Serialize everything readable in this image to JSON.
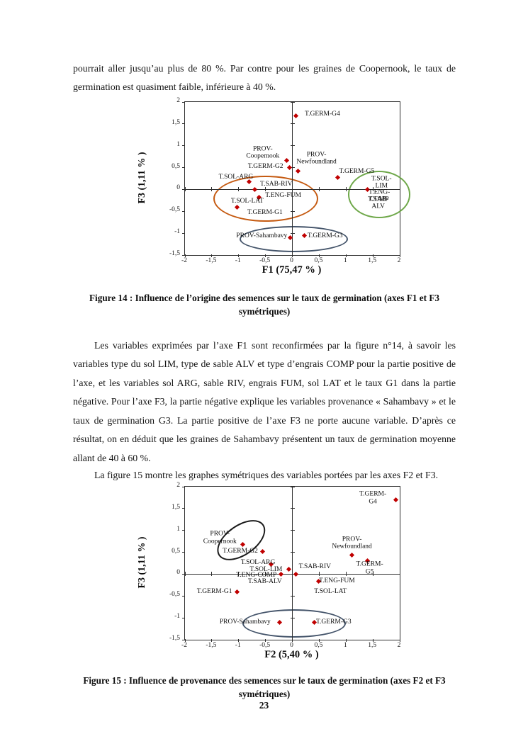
{
  "page": {
    "paragraph1": "pourrait aller jusqu’au plus de 80 %. Par contre pour les graines de Coopernook, le taux de germination est quasiment faible, inférieure à 40 %.",
    "paragraph2": "Les variables exprimées par l’axe F1 sont reconfirmées par la figure n°14, à savoir les variables type du sol LIM, type de sable ALV et type d’engrais COMP  pour la partie positive de l’axe, et les variables sol ARG, sable RIV, engrais FUM, sol LAT et le taux G1 dans la partie négative. Pour l’axe F3, la partie négative explique les variables provenance « Sahambavy » et le taux de germination G3. La partie positive de l’axe F3 ne porte aucune variable. D’après ce résultat, on en déduit que les graines de Sahambavy présentent un taux de germination moyenne allant de 40 à 60 %.",
    "paragraph3": "La figure 15 montre les graphes symétriques des variables portées par les axes F2 et F3.",
    "caption14": {
      "line1": "Figure 14 : Influence de l’origine des semences sur le taux de germination (axes F1 et F3",
      "line2": "symétriques)"
    },
    "caption15": {
      "line1": "Figure 15 : Influence de provenance des semences sur le taux de germination (axes F2 et F3",
      "line2": "symétriques)"
    },
    "page_number": "23"
  },
  "chart_data": [
    {
      "type": "scatter",
      "xlabel": "F1 (75,47 % )",
      "ylabel": "F3 (1,11 % )",
      "xlim": [
        -2,
        2
      ],
      "ylim": [
        -1.5,
        2
      ],
      "tick_step": 0.5,
      "x_ticks": [
        "-2",
        "-1,5",
        "-1",
        "-0,5",
        "0",
        "0,5",
        "1",
        "1,5",
        "2"
      ],
      "y_ticks": [
        "2",
        "1,5",
        "1",
        "0,5",
        "0",
        "-0,5",
        "-1",
        "-1,5"
      ],
      "point_color": "#c00000",
      "points": [
        {
          "label": "T.GERM-G4",
          "x": 0.07,
          "y": 1.68,
          "lx": 0.56,
          "ly": 1.72
        },
        {
          "label": "PROV-\nCoopernook",
          "x": -0.1,
          "y": 0.66,
          "lx": -0.55,
          "ly": 0.84
        },
        {
          "label": "T.GERM-G2",
          "x": -0.05,
          "y": 0.5,
          "lx": -0.5,
          "ly": 0.53
        },
        {
          "label": "PROV-\nNewfoundland",
          "x": 0.1,
          "y": 0.42,
          "lx": 0.45,
          "ly": 0.71
        },
        {
          "label": "T.GERM-G5",
          "x": 0.85,
          "y": 0.27,
          "lx": 1.2,
          "ly": 0.41
        },
        {
          "label": "T.SOL-ARG",
          "x": -0.8,
          "y": 0.17,
          "lx": -1.05,
          "ly": 0.29
        },
        {
          "label": "T.SAB-RIV",
          "x": -0.7,
          "y": 0.0,
          "lx": -0.3,
          "ly": 0.12
        },
        {
          "label": "T.ENG-FUM",
          "x": -0.62,
          "y": -0.18,
          "lx": -0.17,
          "ly": -0.14
        },
        {
          "label": "T.SOL-LAT",
          "x": -1.03,
          "y": -0.41,
          "lx": -0.84,
          "ly": -0.27
        },
        {
          "label": "T.GERM-G1",
          "x": null,
          "y": null,
          "lx": -0.51,
          "ly": -0.52
        },
        {
          "label": "T.SOL-LIM",
          "x": 1.4,
          "y": 0.0,
          "lx": 1.66,
          "ly": 0.16
        },
        {
          "label": "T.ENG-COMP",
          "x": null,
          "y": null,
          "lx": 1.62,
          "ly": -0.15
        },
        {
          "label": "T.SAB-ALV",
          "x": null,
          "y": null,
          "lx": 1.6,
          "ly": -0.31
        },
        {
          "label": "PROV-Sahambavy",
          "x": -0.04,
          "y": -1.1,
          "lx": -0.57,
          "ly": -1.07
        },
        {
          "label": "T.GERM-G3",
          "x": 0.22,
          "y": -1.05,
          "lx": 0.61,
          "ly": -1.06
        }
      ],
      "ellipses": [
        {
          "color": "#c55a11",
          "cx": -0.52,
          "cy": -0.18,
          "rx": 0.95,
          "ry": 0.5,
          "rot": 0
        },
        {
          "color": "#6fa84a",
          "cx": 1.59,
          "cy": -0.08,
          "rx": 0.56,
          "ry": 0.51,
          "rot": 0
        },
        {
          "color": "#44546a",
          "cx": 0.0,
          "cy": -1.1,
          "rx": 0.99,
          "ry": 0.27,
          "rot": 0
        }
      ]
    },
    {
      "type": "scatter",
      "xlabel": "F2 (5,40 % )",
      "ylabel": "F3 (1,11 % )",
      "xlim": [
        -2,
        2
      ],
      "ylim": [
        -1.5,
        2
      ],
      "tick_step": 0.5,
      "x_ticks": [
        "-2",
        "-1,5",
        "-1",
        "-0,5",
        "0",
        "0,5",
        "1",
        "1,5",
        "2"
      ],
      "y_ticks": [
        "2",
        "1,5",
        "1",
        "0,5",
        "0",
        "-0,5",
        "-1",
        "-1,5"
      ],
      "point_color": "#c00000",
      "points": [
        {
          "label": "T.GERM-G4",
          "x": 1.93,
          "y": 1.7,
          "lx": 1.5,
          "ly": 1.74
        },
        {
          "label": "PROV-\nCoopernook",
          "x": -0.93,
          "y": 0.68,
          "lx": -1.35,
          "ly": 0.83
        },
        {
          "label": "T.GERM-G2",
          "x": -0.55,
          "y": 0.52,
          "lx": -0.97,
          "ly": 0.53
        },
        {
          "label": "PROV-\nNewfoundland",
          "x": 1.11,
          "y": 0.43,
          "lx": 1.11,
          "ly": 0.71
        },
        {
          "label": "T.GERM-G5",
          "x": 1.4,
          "y": 0.3,
          "lx": 1.44,
          "ly": 0.13
        },
        {
          "label": "T.SOL-ARG",
          "x": -0.39,
          "y": 0.22,
          "lx": -0.64,
          "ly": 0.27
        },
        {
          "label": "T.SOL-LIM",
          "x": -0.07,
          "y": 0.12,
          "lx": -0.49,
          "ly": 0.11
        },
        {
          "label": "T.ENG-COMP",
          "x": -0.21,
          "y": 0.0,
          "lx": -0.67,
          "ly": -0.02
        },
        {
          "label": "T.SAB-ALV",
          "x": null,
          "y": null,
          "lx": -0.51,
          "ly": -0.17
        },
        {
          "label": "T.SAB-RIV",
          "x": 0.07,
          "y": 0.0,
          "lx": 0.42,
          "ly": 0.17
        },
        {
          "label": "T.ENG-FUM",
          "x": 0.49,
          "y": -0.17,
          "lx": 0.83,
          "ly": -0.15
        },
        {
          "label": "T.SOL-LAT",
          "x": null,
          "y": null,
          "lx": 0.71,
          "ly": -0.4
        },
        {
          "label": "T.GERM-G1",
          "x": -1.03,
          "y": -0.4,
          "lx": -1.45,
          "ly": -0.4
        },
        {
          "label": "PROV-Sahambavy",
          "x": -0.24,
          "y": -1.11,
          "lx": -0.88,
          "ly": -1.1
        },
        {
          "label": "T.GERM-G3",
          "x": 0.41,
          "y": -1.11,
          "lx": 0.77,
          "ly": -1.1
        }
      ],
      "ellipses": [
        {
          "color": "#1a1a1a",
          "cx": -0.98,
          "cy": 0.8,
          "rx": 0.48,
          "ry": 0.32,
          "rot": -35
        },
        {
          "color": "#44546a",
          "cx": 0.01,
          "cy": -1.09,
          "rx": 0.94,
          "ry": 0.29,
          "rot": 0
        }
      ]
    }
  ]
}
